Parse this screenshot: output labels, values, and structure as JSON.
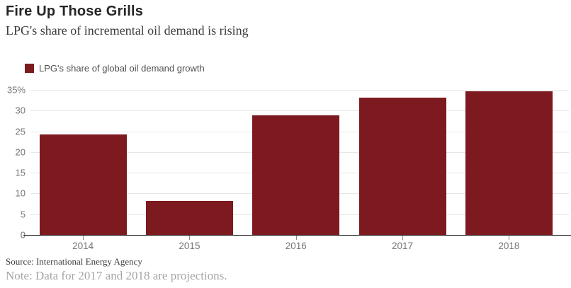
{
  "header": {
    "title": "Fire Up Those Grills",
    "subtitle": "LPG's share of incremental oil demand is rising"
  },
  "legend": {
    "label": "LPG's share of global oil demand growth",
    "swatch_color": "#7d1a1f"
  },
  "footer": {
    "source": "Source: International Energy Agency",
    "note": "Note: Data for 2017 and 2018 are projections."
  },
  "chart_data": {
    "type": "bar",
    "title": "Fire Up Those Grills",
    "subtitle": "LPG's share of incremental oil demand is rising",
    "series_name": "LPG's share of global oil demand growth",
    "categories": [
      "2014",
      "2015",
      "2016",
      "2017",
      "2018"
    ],
    "values": [
      24.2,
      8.2,
      28.8,
      33.2,
      34.6
    ],
    "ylim": [
      0,
      35
    ],
    "yticks": [
      0,
      5,
      10,
      15,
      20,
      25,
      30,
      35
    ],
    "yticklabels": [
      "0",
      "5",
      "10",
      "15",
      "20",
      "25",
      "30",
      "35%"
    ],
    "grid": "horizontal",
    "legend_position": "top-left",
    "bar_color": "#7d1a1f",
    "gridline_color": "#e7e7e7",
    "axis_line_color": "#2a2a2a",
    "tick_label_color": "#767676"
  }
}
